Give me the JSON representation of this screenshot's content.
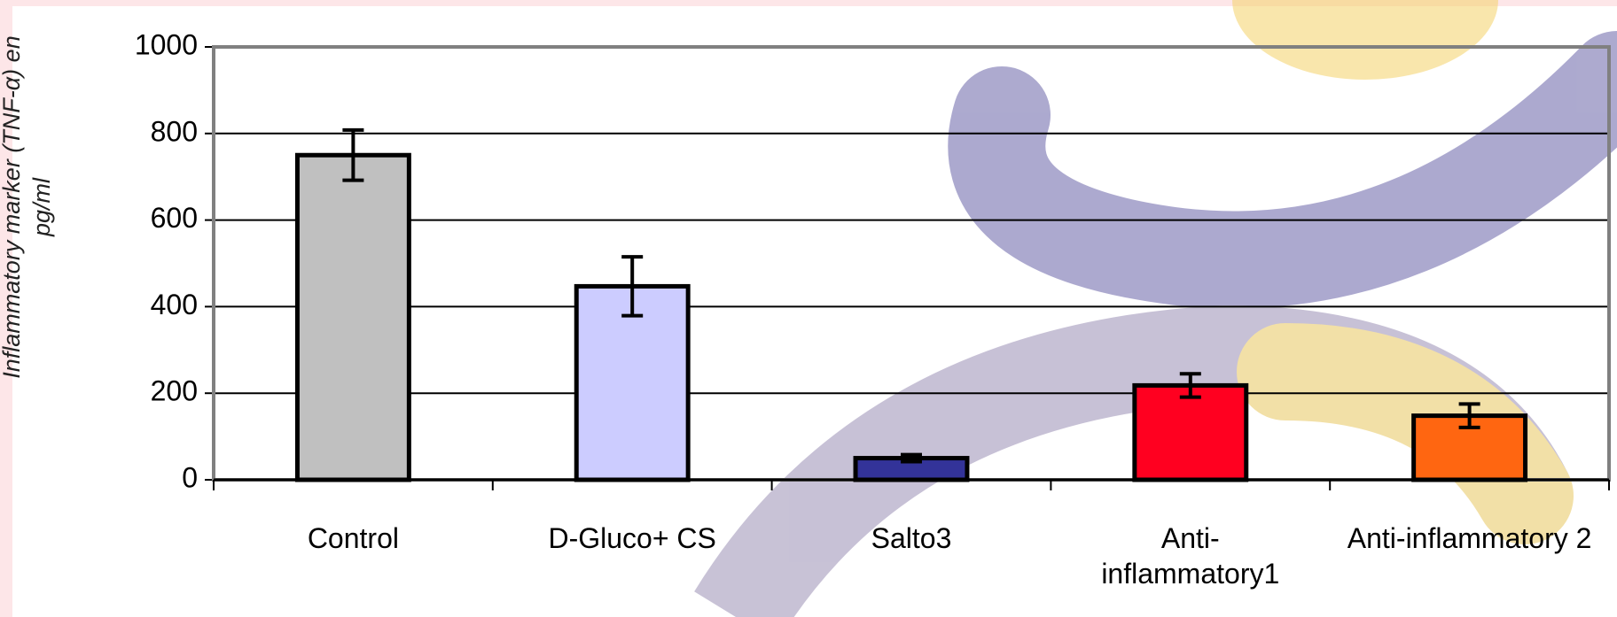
{
  "chart_data": {
    "type": "bar",
    "y_label": "Inflammatory marker (TNF-α) en pg/ml",
    "categories": [
      "Control",
      "D-Gluco+ CS",
      "Salto3",
      "Anti-inflammatory1",
      "Anti-inflammatory 2"
    ],
    "values": [
      750,
      447,
      50,
      218,
      148
    ],
    "errors": [
      58,
      68,
      8,
      27,
      27
    ],
    "colors": [
      "#c0c0c0",
      "#ccccff",
      "#333399",
      "#ff0020",
      "#ff6611"
    ],
    "ylim": [
      0,
      1000
    ],
    "yticks": [
      0,
      200,
      400,
      600,
      800,
      1000
    ],
    "grid": true
  }
}
